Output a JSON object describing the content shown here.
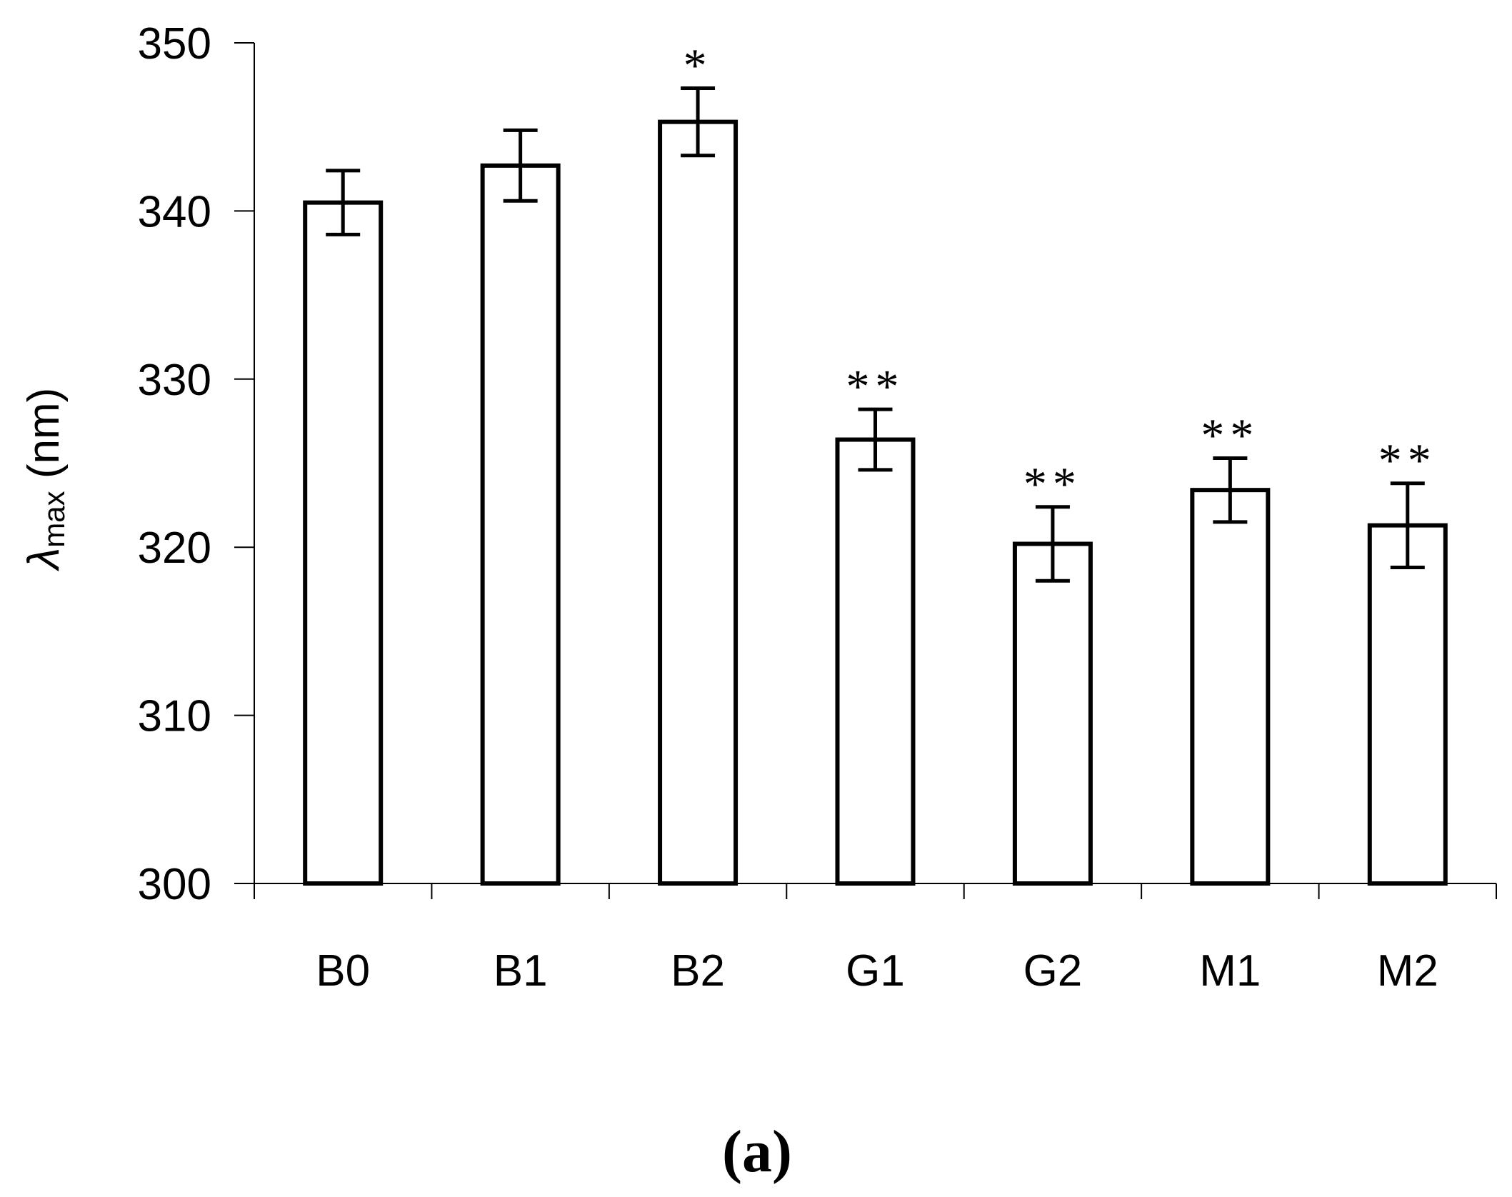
{
  "chart_data": {
    "type": "bar",
    "categories": [
      "B0",
      "B1",
      "B2",
      "G1",
      "G2",
      "M1",
      "M2"
    ],
    "values": [
      340.5,
      342.7,
      345.3,
      326.4,
      320.2,
      323.4,
      321.3
    ],
    "errors": [
      1.9,
      2.1,
      2.0,
      1.8,
      2.2,
      1.9,
      2.5
    ],
    "significance": [
      "",
      "",
      "*",
      "**",
      "**",
      "**",
      "**"
    ],
    "ylabel_symbol": "λ",
    "ylabel_subscript": "max",
    "ylabel_unit": "(nm)",
    "ylim": [
      300,
      350
    ],
    "yticks": [
      300,
      310,
      320,
      330,
      340,
      350
    ],
    "grid": false,
    "bar_fill": "#ffffff",
    "bar_stroke": "#000000"
  },
  "panel_label": "(a)"
}
